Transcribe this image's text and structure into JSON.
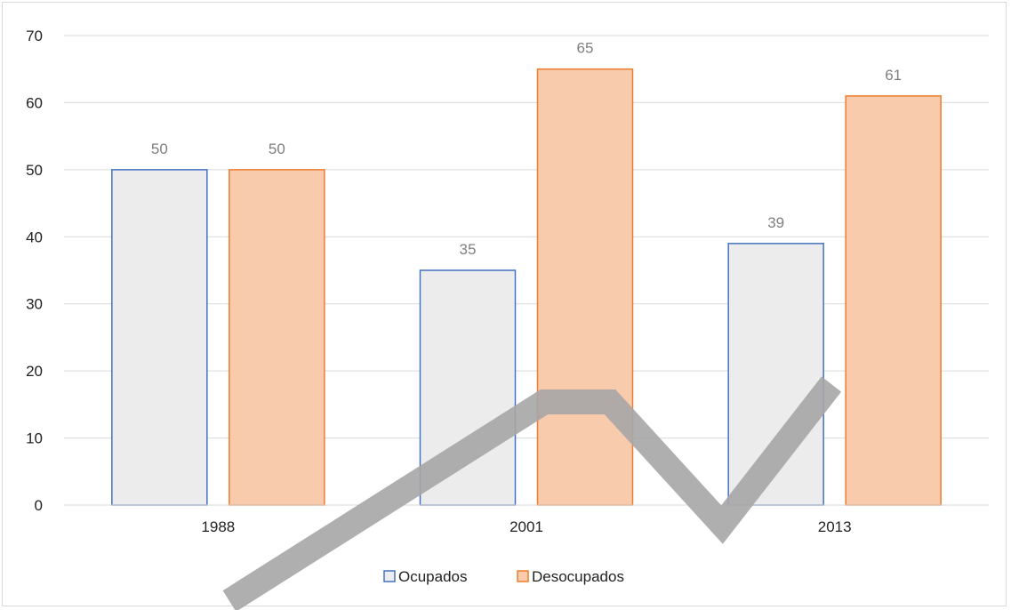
{
  "chart_data": {
    "type": "bar",
    "title": "",
    "xlabel": "",
    "ylabel": "",
    "categories": [
      "1988",
      "2001",
      "2013"
    ],
    "series": [
      {
        "name": "Ocupados",
        "values": [
          50,
          35,
          39
        ],
        "fill": "#ececec",
        "stroke": "#4472c4"
      },
      {
        "name": "Desocupados",
        "values": [
          50,
          65,
          61
        ],
        "fill": "#f8cbad",
        "stroke": "#ed7d31"
      }
    ],
    "ylim": [
      0,
      70
    ],
    "yticks": [
      "0",
      "10",
      "20",
      "30",
      "40",
      "50",
      "60",
      "70"
    ],
    "grid": true,
    "gridColor": "#d9d9d9",
    "legend": "bottom",
    "dataLabels": true,
    "watermarkColor": "#a6a6a6"
  }
}
